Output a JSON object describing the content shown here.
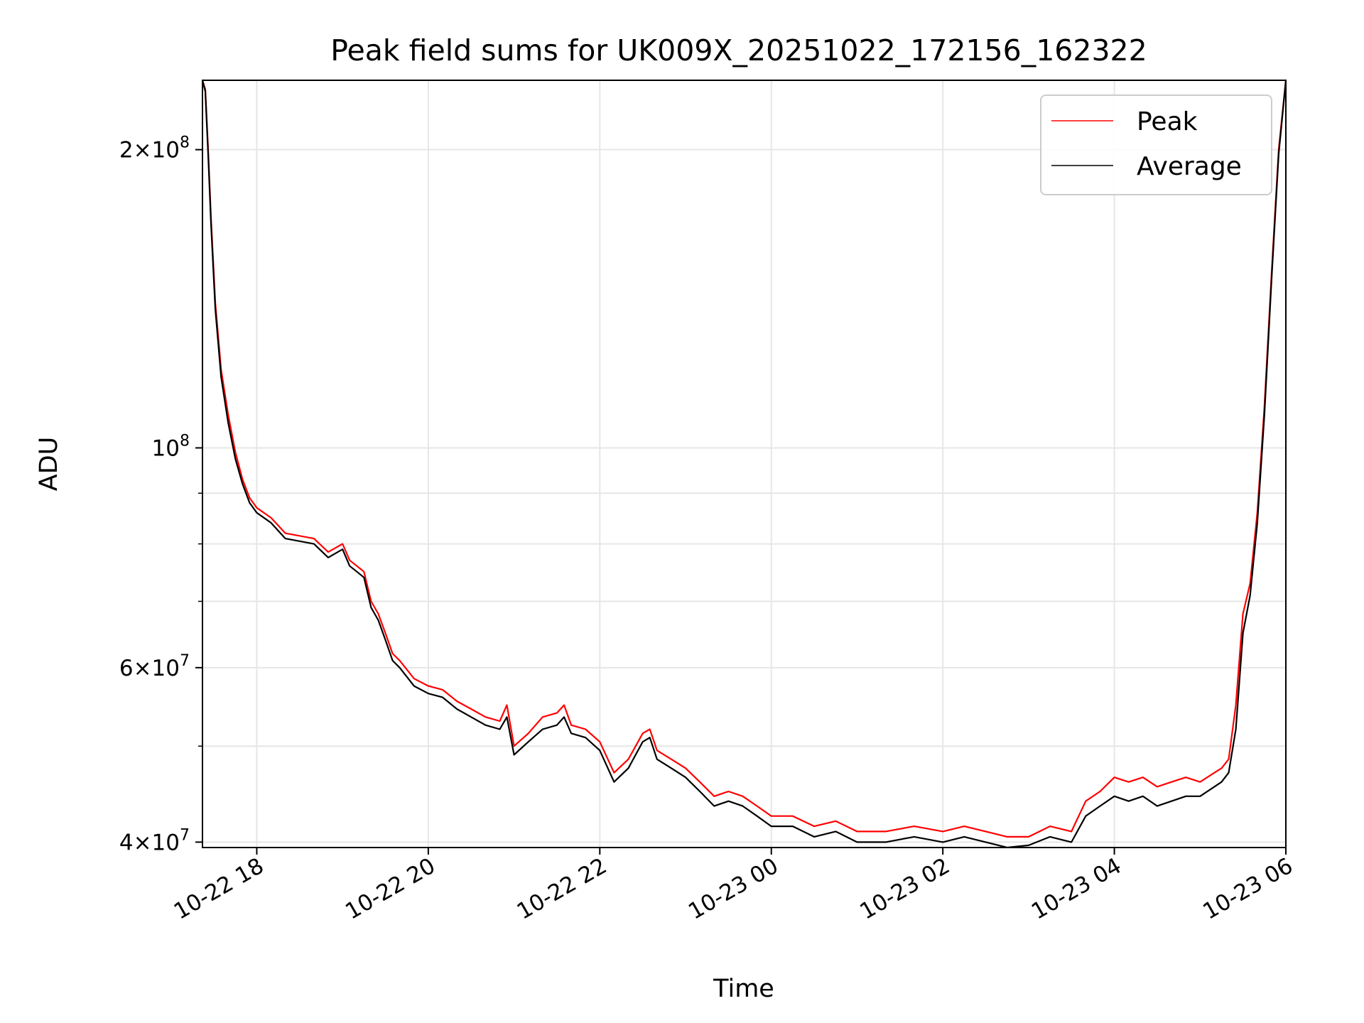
{
  "chart_data": {
    "type": "line",
    "title": "Peak field sums for UK009X_20251022_172156_162322",
    "xlabel": "Time",
    "ylabel": "ADU",
    "yscale": "log",
    "xlim": [
      "2025-10-22 17:22",
      "2025-10-23 06:00"
    ],
    "ylim": [
      39500000,
      235000000
    ],
    "grid": true,
    "legend": {
      "position": "top-right",
      "entries": [
        "Peak",
        "Average"
      ]
    },
    "x_ticks": [
      {
        "value": "2025-10-22 18:00",
        "label": "10-22 18"
      },
      {
        "value": "2025-10-22 20:00",
        "label": "10-22 20"
      },
      {
        "value": "2025-10-22 22:00",
        "label": "10-22 22"
      },
      {
        "value": "2025-10-23 00:00",
        "label": "10-23 00"
      },
      {
        "value": "2025-10-23 02:00",
        "label": "10-23 02"
      },
      {
        "value": "2025-10-23 04:00",
        "label": "10-23 04"
      },
      {
        "value": "2025-10-23 06:00",
        "label": "10-23 06"
      }
    ],
    "y_ticks": [
      {
        "value": 40000000,
        "mantissa": "4",
        "exponent": "7"
      },
      {
        "value": 60000000,
        "mantissa": "6",
        "exponent": "7"
      },
      {
        "value": 100000000,
        "mantissa": "",
        "exponent": "8"
      },
      {
        "value": 200000000,
        "mantissa": "2",
        "exponent": "8"
      }
    ],
    "y_minor_ticks": [
      50000000,
      70000000,
      80000000,
      90000000
    ],
    "series": [
      {
        "name": "Peak",
        "color": "#ff0000",
        "x": [
          "2025-10-22 17:22",
          "2025-10-22 17:24",
          "2025-10-22 17:26",
          "2025-10-22 17:28",
          "2025-10-22 17:31",
          "2025-10-22 17:35",
          "2025-10-22 17:40",
          "2025-10-22 17:45",
          "2025-10-22 17:50",
          "2025-10-22 17:55",
          "2025-10-22 18:00",
          "2025-10-22 18:10",
          "2025-10-22 18:20",
          "2025-10-22 18:30",
          "2025-10-22 18:40",
          "2025-10-22 18:50",
          "2025-10-22 19:00",
          "2025-10-22 19:05",
          "2025-10-22 19:10",
          "2025-10-22 19:15",
          "2025-10-22 19:20",
          "2025-10-22 19:25",
          "2025-10-22 19:30",
          "2025-10-22 19:35",
          "2025-10-22 19:40",
          "2025-10-22 19:50",
          "2025-10-22 20:00",
          "2025-10-22 20:10",
          "2025-10-22 20:20",
          "2025-10-22 20:30",
          "2025-10-22 20:40",
          "2025-10-22 20:50",
          "2025-10-22 20:55",
          "2025-10-22 21:00",
          "2025-10-22 21:10",
          "2025-10-22 21:20",
          "2025-10-22 21:30",
          "2025-10-22 21:35",
          "2025-10-22 21:40",
          "2025-10-22 21:50",
          "2025-10-22 22:00",
          "2025-10-22 22:10",
          "2025-10-22 22:20",
          "2025-10-22 22:30",
          "2025-10-22 22:35",
          "2025-10-22 22:40",
          "2025-10-22 22:50",
          "2025-10-22 23:00",
          "2025-10-22 23:10",
          "2025-10-22 23:20",
          "2025-10-22 23:30",
          "2025-10-22 23:40",
          "2025-10-22 23:50",
          "2025-10-23 00:00",
          "2025-10-23 00:15",
          "2025-10-23 00:30",
          "2025-10-23 00:45",
          "2025-10-23 01:00",
          "2025-10-23 01:20",
          "2025-10-23 01:40",
          "2025-10-23 02:00",
          "2025-10-23 02:15",
          "2025-10-23 02:30",
          "2025-10-23 02:45",
          "2025-10-23 03:00",
          "2025-10-23 03:15",
          "2025-10-23 03:30",
          "2025-10-23 03:40",
          "2025-10-23 03:50",
          "2025-10-23 04:00",
          "2025-10-23 04:10",
          "2025-10-23 04:20",
          "2025-10-23 04:30",
          "2025-10-23 04:40",
          "2025-10-23 04:50",
          "2025-10-23 05:00",
          "2025-10-23 05:10",
          "2025-10-23 05:15",
          "2025-10-23 05:20",
          "2025-10-23 05:25",
          "2025-10-23 05:30",
          "2025-10-23 05:35",
          "2025-10-23 05:40",
          "2025-10-23 05:45",
          "2025-10-23 05:50",
          "2025-10-23 05:55",
          "2025-10-23 06:00"
        ],
        "values": [
          235000000,
          230000000,
          200000000,
          170000000,
          140000000,
          120000000,
          108000000,
          99000000,
          93000000,
          89000000,
          87000000,
          85000000,
          82000000,
          81500000,
          81000000,
          78500000,
          80000000,
          77000000,
          76000000,
          75000000,
          70000000,
          68000000,
          65000000,
          62000000,
          61000000,
          58500000,
          57500000,
          57000000,
          55500000,
          54500000,
          53500000,
          53000000,
          55000000,
          50000000,
          51500000,
          53500000,
          54000000,
          55000000,
          52500000,
          52000000,
          50500000,
          47000000,
          48500000,
          51500000,
          52000000,
          49500000,
          48500000,
          47500000,
          46000000,
          44500000,
          45000000,
          44500000,
          43500000,
          42500000,
          42500000,
          41500000,
          42000000,
          41000000,
          41000000,
          41500000,
          41000000,
          41500000,
          41000000,
          40500000,
          40500000,
          41500000,
          41000000,
          44000000,
          45000000,
          46500000,
          46000000,
          46500000,
          45500000,
          46000000,
          46500000,
          46000000,
          47000000,
          47500000,
          48500000,
          55000000,
          68000000,
          73000000,
          86000000,
          110000000,
          150000000,
          200000000,
          235000000
        ]
      },
      {
        "name": "Average",
        "color": "#000000",
        "x": [
          "2025-10-22 17:22",
          "2025-10-22 17:24",
          "2025-10-22 17:26",
          "2025-10-22 17:28",
          "2025-10-22 17:31",
          "2025-10-22 17:35",
          "2025-10-22 17:40",
          "2025-10-22 17:45",
          "2025-10-22 17:50",
          "2025-10-22 17:55",
          "2025-10-22 18:00",
          "2025-10-22 18:10",
          "2025-10-22 18:20",
          "2025-10-22 18:30",
          "2025-10-22 18:40",
          "2025-10-22 18:50",
          "2025-10-22 19:00",
          "2025-10-22 19:05",
          "2025-10-22 19:10",
          "2025-10-22 19:15",
          "2025-10-22 19:20",
          "2025-10-22 19:25",
          "2025-10-22 19:30",
          "2025-10-22 19:35",
          "2025-10-22 19:40",
          "2025-10-22 19:50",
          "2025-10-22 20:00",
          "2025-10-22 20:10",
          "2025-10-22 20:20",
          "2025-10-22 20:30",
          "2025-10-22 20:40",
          "2025-10-22 20:50",
          "2025-10-22 20:55",
          "2025-10-22 21:00",
          "2025-10-22 21:10",
          "2025-10-22 21:20",
          "2025-10-22 21:30",
          "2025-10-22 21:35",
          "2025-10-22 21:40",
          "2025-10-22 21:50",
          "2025-10-22 22:00",
          "2025-10-22 22:10",
          "2025-10-22 22:20",
          "2025-10-22 22:30",
          "2025-10-22 22:35",
          "2025-10-22 22:40",
          "2025-10-22 22:50",
          "2025-10-22 23:00",
          "2025-10-22 23:10",
          "2025-10-22 23:20",
          "2025-10-22 23:30",
          "2025-10-22 23:40",
          "2025-10-22 23:50",
          "2025-10-23 00:00",
          "2025-10-23 00:15",
          "2025-10-23 00:30",
          "2025-10-23 00:45",
          "2025-10-23 01:00",
          "2025-10-23 01:20",
          "2025-10-23 01:40",
          "2025-10-23 02:00",
          "2025-10-23 02:15",
          "2025-10-23 02:30",
          "2025-10-23 02:45",
          "2025-10-23 03:00",
          "2025-10-23 03:15",
          "2025-10-23 03:30",
          "2025-10-23 03:40",
          "2025-10-23 03:50",
          "2025-10-23 04:00",
          "2025-10-23 04:10",
          "2025-10-23 04:20",
          "2025-10-23 04:30",
          "2025-10-23 04:40",
          "2025-10-23 04:50",
          "2025-10-23 05:00",
          "2025-10-23 05:10",
          "2025-10-23 05:15",
          "2025-10-23 05:20",
          "2025-10-23 05:25",
          "2025-10-23 05:30",
          "2025-10-23 05:35",
          "2025-10-23 05:40",
          "2025-10-23 05:45",
          "2025-10-23 05:50",
          "2025-10-23 05:55",
          "2025-10-23 06:00"
        ],
        "values": [
          235000000,
          229000000,
          198000000,
          168000000,
          138000000,
          118000000,
          106000000,
          97500000,
          92000000,
          88000000,
          86000000,
          84000000,
          81000000,
          80500000,
          80000000,
          77500000,
          79000000,
          76000000,
          75000000,
          74000000,
          69000000,
          67000000,
          64000000,
          61000000,
          60000000,
          57500000,
          56500000,
          56000000,
          54500000,
          53500000,
          52500000,
          52000000,
          53500000,
          49000000,
          50500000,
          52000000,
          52500000,
          53500000,
          51500000,
          51000000,
          49500000,
          46000000,
          47500000,
          50500000,
          51000000,
          48500000,
          47500000,
          46500000,
          45000000,
          43500000,
          44000000,
          43500000,
          42500000,
          41500000,
          41500000,
          40500000,
          41000000,
          40000000,
          40000000,
          40500000,
          40000000,
          40500000,
          40000000,
          39500000,
          39700000,
          40500000,
          40000000,
          42500000,
          43500000,
          44500000,
          44000000,
          44500000,
          43500000,
          44000000,
          44500000,
          44500000,
          45500000,
          46000000,
          47000000,
          52000000,
          65000000,
          71000000,
          84000000,
          108000000,
          148000000,
          198000000,
          235000000
        ]
      }
    ]
  }
}
